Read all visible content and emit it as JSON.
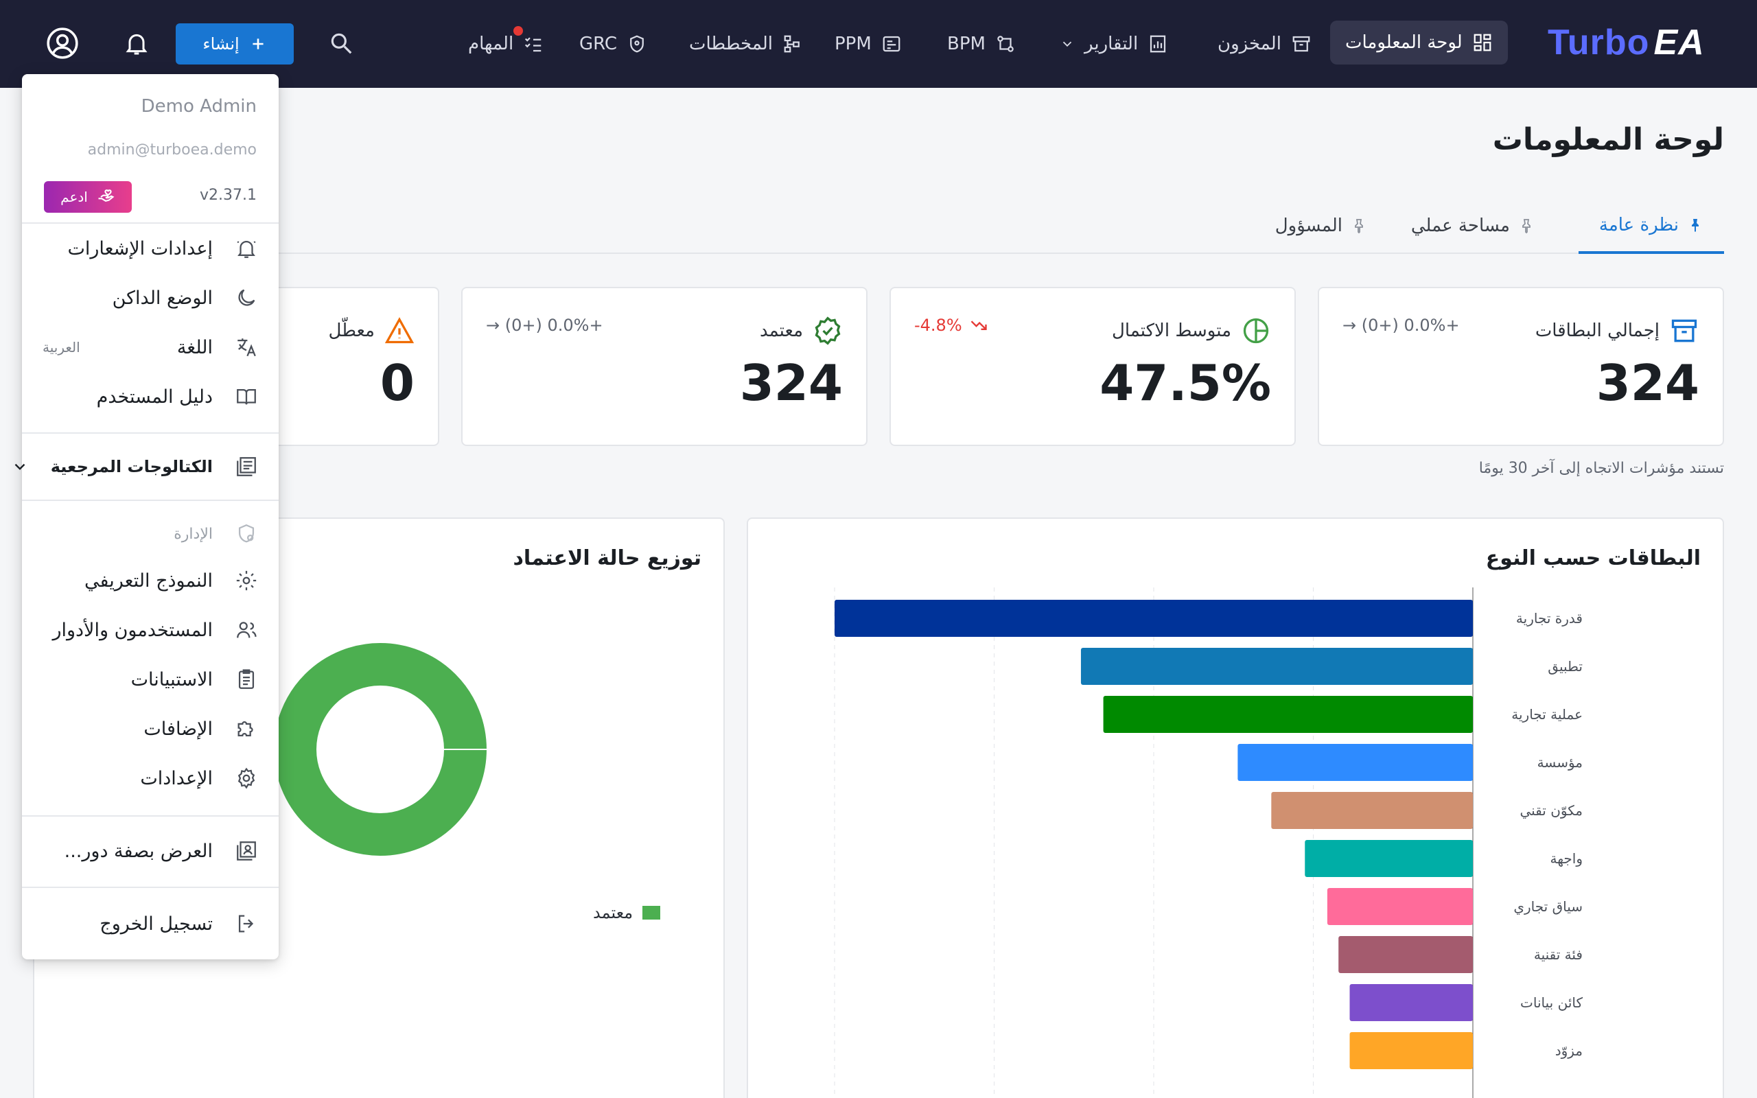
{
  "nav": {
    "logo_a": "Turbo",
    "logo_b": "EA",
    "items": [
      {
        "label": "لوحة المعلومات",
        "icon": "dashboard-icon"
      },
      {
        "label": "المخزون",
        "icon": "archive-icon"
      },
      {
        "label": "التقارير",
        "icon": "report-icon"
      },
      {
        "label": "BPM",
        "icon": "bpm-icon"
      },
      {
        "label": "PPM",
        "icon": "ppm-icon"
      },
      {
        "label": "المخططات",
        "icon": "diagram-icon"
      },
      {
        "label": "GRC",
        "icon": "shield-icon"
      },
      {
        "label": "المهام",
        "icon": "tasks-icon"
      }
    ],
    "create_label": "إنشاء"
  },
  "page": {
    "title": "لوحة المعلومات",
    "tabs": [
      {
        "label": "نظرة عامة"
      },
      {
        "label": "مساحة عملي"
      },
      {
        "label": "المسؤول"
      }
    ],
    "trend_note": "تستند مؤشرات الاتجاه إلى آخر 30 يومًا"
  },
  "kpis": [
    {
      "label": "إجمالي البطاقات",
      "value": "324",
      "trend": "→ (0+) 0.0%+",
      "icon": "archive-icon"
    },
    {
      "label": "متوسط الاكتمال",
      "value": "47.5%",
      "trend": "-4.8%",
      "icon": "pie-icon"
    },
    {
      "label": "معتمد",
      "value": "324",
      "trend": "→ (0+) 0.0%+",
      "icon": "verified-icon"
    },
    {
      "label": "معطّل",
      "value": "0",
      "icon": "warning-icon"
    }
  ],
  "cards": {
    "by_type_title": "البطاقات حسب النوع",
    "approval_title": "توزيع حالة الاعتماد",
    "approval_legend": "معتمد"
  },
  "chart_data": [
    {
      "type": "bar",
      "title": "البطاقات حسب النوع",
      "orientation": "horizontal",
      "categories": [
        "قدرة تجارية",
        "تطبيق",
        "عملية تجارية",
        "مؤسسة",
        "مكوّن تقني",
        "واجهة",
        "سياق تجاري",
        "فئة تقنية",
        "كائن بيانات",
        "مزوّد"
      ],
      "values": [
        57,
        35,
        33,
        21,
        18,
        15,
        13,
        12,
        11,
        11
      ],
      "colors": [
        "#003399",
        "#1179b5",
        "#008a00",
        "#2e8bff",
        "#d09070",
        "#00aea6",
        "#ff6b9a",
        "#a45b6e",
        "#7d4fcc",
        "#ffa626"
      ],
      "grid": true
    },
    {
      "type": "pie",
      "title": "توزيع حالة الاعتماد",
      "labels": [
        "معتمد"
      ],
      "values": [
        324
      ],
      "colors": [
        "#4caf50"
      ]
    }
  ],
  "menu": {
    "name": "Demo Admin",
    "email": "admin@turboea.demo",
    "version": "v2.37.1",
    "support_label": "ادعم",
    "items": [
      {
        "label": "إعدادات الإشعارات",
        "icon": "bell-settings-icon"
      },
      {
        "label": "الوضع الداكن",
        "icon": "moon-icon"
      },
      {
        "label": "اللغة",
        "icon": "translate-icon",
        "extra": "العربية"
      },
      {
        "label": "دليل المستخدم",
        "icon": "book-icon"
      }
    ],
    "catalogs_label": "الكتالوجات المرجعية",
    "admin_header": "الإدارة",
    "admin_items": [
      {
        "label": "النموذج التعريفي",
        "icon": "metamodel-icon"
      },
      {
        "label": "المستخدمون والأدوار",
        "icon": "users-icon"
      },
      {
        "label": "الاستبيانات",
        "icon": "clipboard-icon"
      },
      {
        "label": "الإضافات",
        "icon": "puzzle-icon"
      },
      {
        "label": "الإعدادات",
        "icon": "gear-icon"
      }
    ],
    "view_as_label": "العرض بصفة دور...",
    "logout_label": "تسجيل الخروج"
  }
}
